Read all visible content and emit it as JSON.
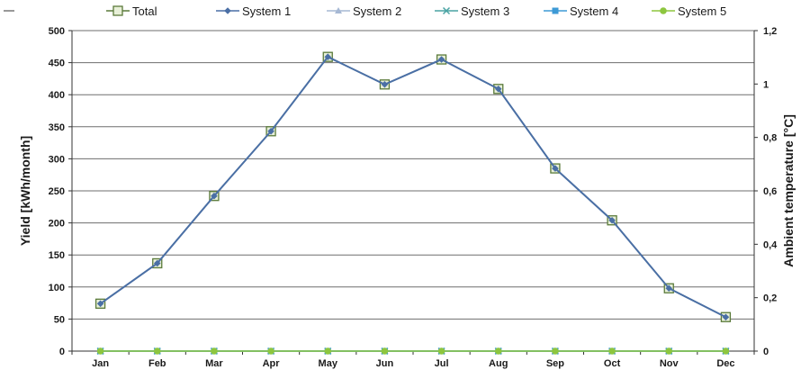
{
  "chart_data": {
    "type": "line",
    "categories": [
      "Jan",
      "Feb",
      "Mar",
      "Apr",
      "May",
      "Jun",
      "Jul",
      "Aug",
      "Sep",
      "Oct",
      "Nov",
      "Dec"
    ],
    "ylabel": "Yield [kWh/month]",
    "y2label": "Ambient temperature [°C]",
    "ylim": [
      0,
      500
    ],
    "yticks": [
      "0",
      "50",
      "100",
      "150",
      "200",
      "250",
      "300",
      "350",
      "400",
      "450",
      "500"
    ],
    "y2lim": [
      0,
      1.2
    ],
    "y2ticks": [
      "0",
      "0,2",
      "0,4",
      "0,6",
      "0,8",
      "1",
      "1,2"
    ],
    "grid": true,
    "legend_position": "top",
    "series": [
      {
        "name": "Total",
        "values": [
          74,
          137,
          242,
          343,
          459,
          416,
          455,
          409,
          285,
          204,
          98,
          53
        ],
        "color": "#5a7a3a",
        "marker": "open-square"
      },
      {
        "name": "System 1",
        "values": [
          74,
          137,
          242,
          343,
          459,
          416,
          455,
          409,
          285,
          204,
          98,
          53
        ],
        "color": "#4a6fa5",
        "marker": "diamond"
      },
      {
        "name": "System 2",
        "values": [
          0,
          0,
          0,
          0,
          0,
          0,
          0,
          0,
          0,
          0,
          0,
          0
        ],
        "color": "#a6b8d4",
        "marker": "triangle"
      },
      {
        "name": "System 3",
        "values": [
          0,
          0,
          0,
          0,
          0,
          0,
          0,
          0,
          0,
          0,
          0,
          0
        ],
        "color": "#4aa3a3",
        "marker": "x"
      },
      {
        "name": "System 4",
        "values": [
          0,
          0,
          0,
          0,
          0,
          0,
          0,
          0,
          0,
          0,
          0,
          0
        ],
        "color": "#3d9ad6",
        "marker": "square"
      },
      {
        "name": "System 5",
        "values": [
          0,
          0,
          0,
          0,
          0,
          0,
          0,
          0,
          0,
          0,
          0,
          0
        ],
        "color": "#8dc63f",
        "marker": "circle"
      }
    ]
  }
}
